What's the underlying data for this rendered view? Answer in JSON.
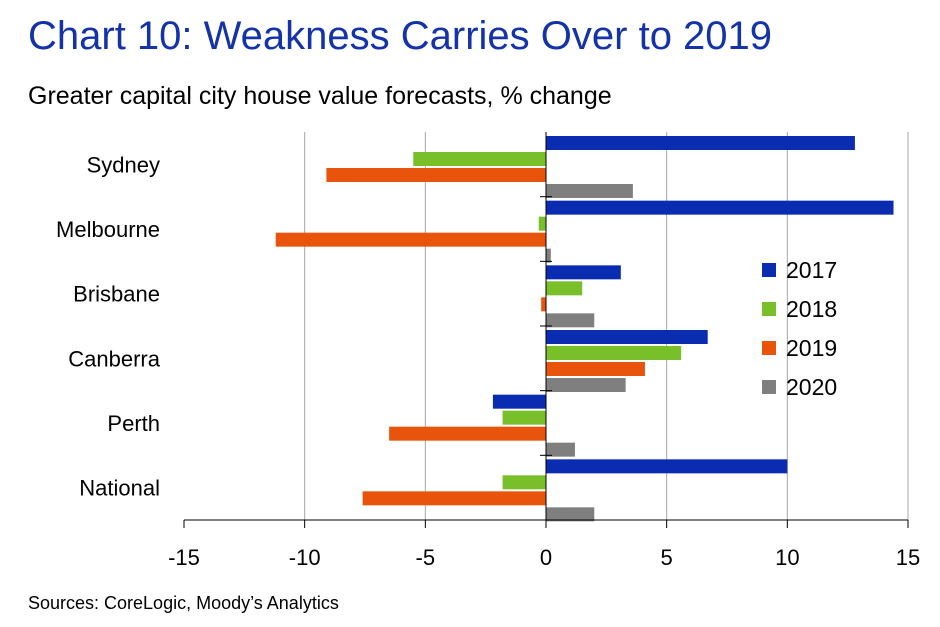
{
  "header": {
    "title": "Chart 10: Weakness Carries Over to 2019",
    "subtitle": "Greater capital city house value forecasts, % change"
  },
  "footer": {
    "source": "Sources: CoreLogic, Moody’s Analytics"
  },
  "colors": {
    "title": "#1433a8",
    "s2017": "#0a2cb0",
    "s2018": "#79bf2a",
    "s2019": "#e8540c",
    "s2020": "#7f7f7f",
    "grid": "#a6a6a6"
  },
  "chart_data": {
    "type": "bar",
    "orientation": "horizontal",
    "categories": [
      "Sydney",
      "Melbourne",
      "Brisbane",
      "Canberra",
      "Perth",
      "National"
    ],
    "series": [
      {
        "name": "2017",
        "values": [
          12.8,
          14.4,
          3.1,
          6.7,
          -2.2,
          10.0
        ]
      },
      {
        "name": "2018",
        "values": [
          -5.5,
          -0.3,
          1.5,
          5.6,
          -1.8,
          -1.8
        ]
      },
      {
        "name": "2019",
        "values": [
          -9.1,
          -11.2,
          -0.2,
          4.1,
          -6.5,
          -7.6
        ]
      },
      {
        "name": "2020",
        "values": [
          3.6,
          0.2,
          2.0,
          3.3,
          1.2,
          2.0
        ]
      }
    ],
    "xlim": [
      -15,
      15
    ],
    "xticks": [
      "-15",
      "-10",
      "-5",
      "0",
      "5",
      "10",
      "15"
    ],
    "grid": "vertical",
    "legend": "right"
  }
}
